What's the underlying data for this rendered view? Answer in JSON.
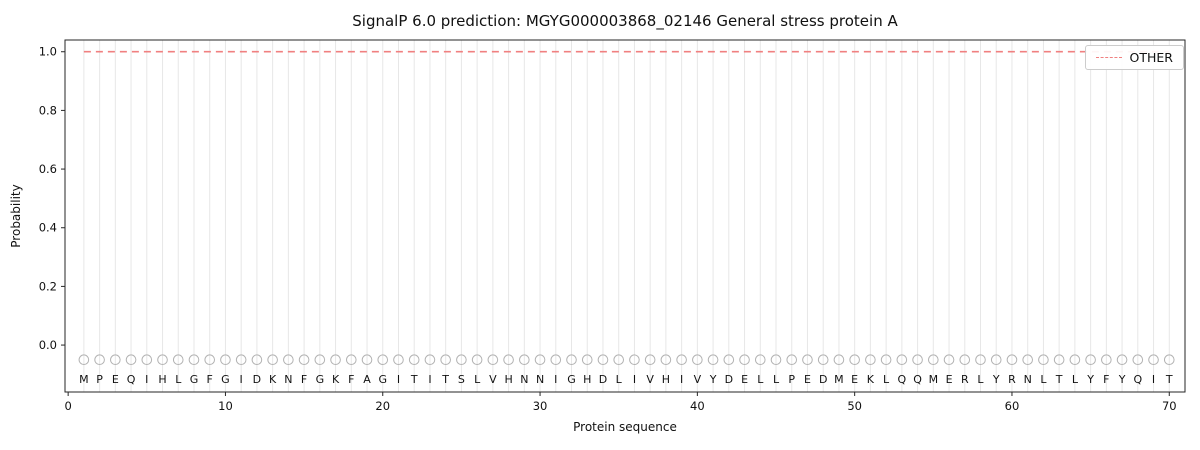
{
  "figure": {
    "background": "#ffffff"
  },
  "chart_data": {
    "type": "line",
    "title": "SignalP 6.0 prediction: MGYG000003868_02146 General stress protein A",
    "xlabel": "Protein sequence",
    "ylabel": "Probability",
    "xlim": [
      -0.2,
      71
    ],
    "ylim": [
      -0.16,
      1.04
    ],
    "x_ticks": [
      0,
      10,
      20,
      30,
      40,
      50,
      60,
      70
    ],
    "y_ticks": [
      0.0,
      0.2,
      0.4,
      0.6,
      0.8,
      1.0
    ],
    "grid": "vertical-per-residue",
    "grid_color": "#e7e7e7",
    "legend_position": "upper right",
    "sequence": "MPEQIHLGFGIDKNFGKFAGITITSLVHNNIGHDLIVHIVYDELLPEDMEKLQQMERLYRNLTLYFYQIT",
    "series": [
      {
        "name": "OTHER",
        "color": "#F08080",
        "line_style": "dashed",
        "x_start": 1,
        "x_step": 1,
        "values": [
          1.0,
          1.0,
          1.0,
          1.0,
          1.0,
          1.0,
          1.0,
          1.0,
          1.0,
          1.0,
          1.0,
          1.0,
          1.0,
          1.0,
          1.0,
          1.0,
          1.0,
          1.0,
          1.0,
          1.0,
          1.0,
          1.0,
          1.0,
          1.0,
          1.0,
          1.0,
          1.0,
          1.0,
          1.0,
          1.0,
          1.0,
          1.0,
          1.0,
          1.0,
          1.0,
          1.0,
          1.0,
          1.0,
          1.0,
          1.0,
          1.0,
          1.0,
          1.0,
          1.0,
          1.0,
          1.0,
          1.0,
          1.0,
          1.0,
          1.0,
          1.0,
          1.0,
          1.0,
          1.0,
          1.0,
          1.0,
          1.0,
          1.0,
          1.0,
          1.0,
          1.0,
          1.0,
          1.0,
          1.0,
          1.0,
          1.0,
          1.0,
          1.0,
          1.0,
          1.0
        ]
      }
    ],
    "residue_markers": {
      "shape": "open-circle",
      "color": "#b3b3b3",
      "y": -0.05
    },
    "residue_letter_y": -0.115,
    "legend": {
      "label": "OTHER"
    }
  }
}
